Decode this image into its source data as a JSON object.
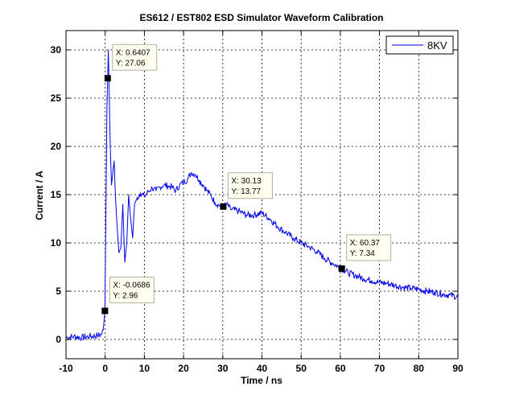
{
  "chart_data": {
    "type": "line",
    "title": "ES612 / EST802 ESD Simulator Waveform Calibration",
    "xlabel": "Time / ns",
    "ylabel": "Current / A",
    "xlim": [
      -10,
      90
    ],
    "ylim": [
      -2,
      32
    ],
    "xticks": [
      -10,
      0,
      10,
      20,
      30,
      40,
      50,
      60,
      70,
      80,
      90
    ],
    "yticks": [
      0,
      5,
      10,
      15,
      20,
      25,
      30
    ],
    "grid": true,
    "legend_position": "top-right",
    "series": [
      {
        "name": "8KV",
        "color": "#0000ee",
        "x": [
          -10,
          -8,
          -6,
          -4,
          -2,
          -1,
          -0.5,
          -0.0686,
          0.2,
          0.45,
          0.6407,
          0.8,
          1.0,
          1.3,
          1.6,
          2.0,
          2.3,
          2.6,
          3.0,
          3.5,
          4.0,
          4.5,
          5.0,
          5.5,
          6.0,
          6.5,
          7.0,
          7.5,
          8.0,
          9.0,
          10.0,
          11.0,
          12.0,
          13.0,
          14.0,
          15.0,
          16.0,
          17.0,
          18.0,
          19.0,
          20.0,
          21.0,
          22.0,
          23.0,
          24.0,
          25.0,
          26.0,
          27.0,
          28.0,
          29.0,
          30.13,
          31.0,
          32.0,
          34.0,
          36.0,
          38.0,
          40.0,
          42.0,
          44.0,
          46.0,
          48.0,
          50.0,
          52.0,
          54.0,
          56.0,
          58.0,
          60.37,
          62.0,
          64.0,
          66.0,
          68.0,
          70.0,
          72.0,
          74.0,
          76.0,
          78.0,
          80.0,
          82.0,
          84.0,
          86.0,
          88.0,
          90.0
        ],
        "y": [
          0.2,
          0.3,
          0.2,
          0.3,
          0.4,
          0.5,
          1.0,
          2.96,
          14.0,
          24.0,
          27.06,
          30.0,
          26.0,
          20.0,
          16.0,
          17.5,
          18.5,
          15.0,
          12.0,
          9.0,
          9.5,
          14.0,
          8.0,
          10.0,
          15.0,
          12.5,
          10.5,
          14.0,
          14.5,
          15.2,
          14.8,
          15.3,
          15.7,
          15.4,
          15.8,
          16.0,
          15.9,
          15.8,
          15.4,
          16.0,
          16.3,
          16.6,
          17.3,
          17.1,
          16.5,
          16.0,
          15.4,
          14.9,
          14.2,
          13.9,
          13.77,
          14.0,
          13.5,
          13.3,
          12.9,
          12.9,
          13.1,
          12.5,
          11.7,
          11.1,
          10.5,
          10.0,
          9.6,
          9.1,
          8.4,
          7.9,
          7.34,
          6.9,
          6.6,
          6.3,
          6.1,
          5.9,
          5.8,
          5.6,
          5.4,
          5.3,
          5.2,
          5.0,
          4.9,
          4.7,
          4.6,
          4.4
        ]
      }
    ],
    "datatips": [
      {
        "x": -0.0686,
        "y": 2.96,
        "label_x": "X: -0.0686",
        "label_y": "Y: 2.96"
      },
      {
        "x": 0.6407,
        "y": 27.06,
        "label_x": "X: 0.6407",
        "label_y": "Y: 27.06"
      },
      {
        "x": 30.13,
        "y": 13.77,
        "label_x": "X: 30.13",
        "label_y": "Y: 13.77"
      },
      {
        "x": 60.37,
        "y": 7.34,
        "label_x": "X: 60.37",
        "label_y": "Y: 7.34"
      }
    ]
  }
}
